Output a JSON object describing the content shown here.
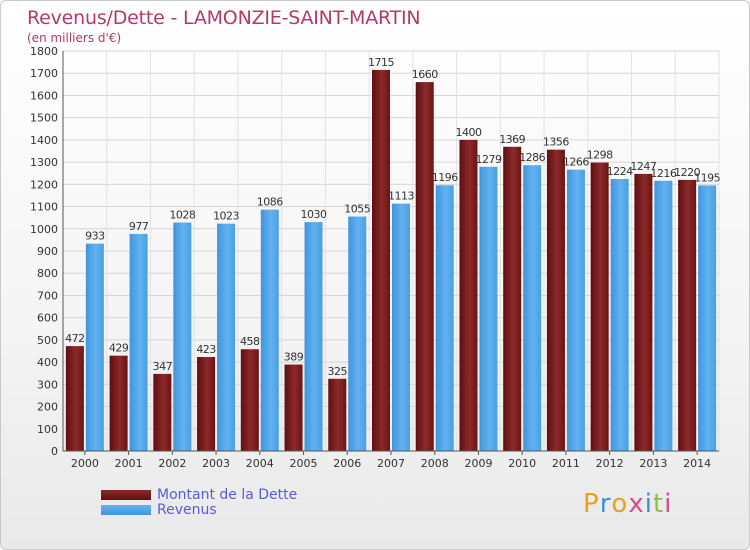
{
  "header": {
    "title": "Revenus/Dette - LAMONZIE-SAINT-MARTIN",
    "subtitle": "(en milliers d'€)"
  },
  "legend": {
    "dette_label": "Montant de la Dette",
    "revenus_label": "Revenus"
  },
  "logo": {
    "text": "Proxiti"
  },
  "colors": {
    "dette": "#7a1a1a",
    "revenus": "#4aa0e6",
    "title": "#b03a6a",
    "legend_text": "#5b5bd6"
  },
  "chart_data": {
    "type": "bar",
    "title": "Revenus/Dette - LAMONZIE-SAINT-MARTIN",
    "ylabel": "(en milliers d'€)",
    "xlabel": "",
    "ylim": [
      0,
      1800
    ],
    "yticks": [
      0,
      100,
      200,
      300,
      400,
      500,
      600,
      700,
      800,
      900,
      1000,
      1100,
      1200,
      1300,
      1400,
      1500,
      1600,
      1700,
      1800
    ],
    "grid": true,
    "legend_position": "bottom-left",
    "categories": [
      "2000",
      "2001",
      "2002",
      "2003",
      "2004",
      "2005",
      "2006",
      "2007",
      "2008",
      "2009",
      "2010",
      "2011",
      "2012",
      "2013",
      "2014"
    ],
    "series": [
      {
        "name": "Montant de la Dette",
        "values": [
          472,
          429,
          347,
          423,
          458,
          389,
          325,
          1715,
          1660,
          1400,
          1369,
          1356,
          1298,
          1247,
          1220
        ]
      },
      {
        "name": "Revenus",
        "values": [
          933,
          977,
          1028,
          1023,
          1086,
          1030,
          1055,
          1113,
          1196,
          1279,
          1286,
          1266,
          1224,
          1216,
          1195
        ]
      }
    ]
  }
}
